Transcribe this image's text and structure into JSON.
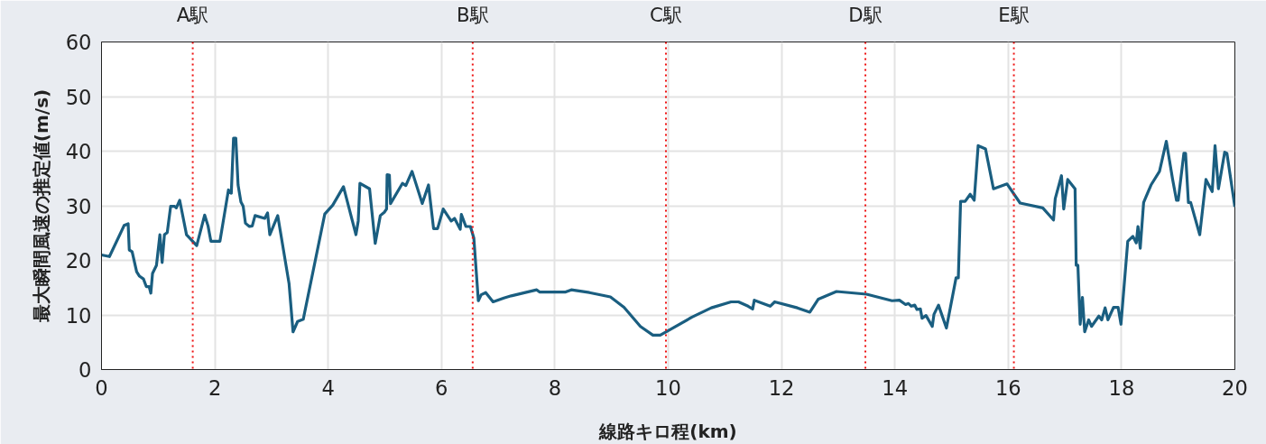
{
  "chart_data": {
    "type": "line",
    "xlabel": "線路キロ程(km)",
    "ylabel": "最大瞬間風速の推定値(m/s)",
    "xlim": [
      0,
      20
    ],
    "xticks": [
      0,
      2,
      4,
      6,
      8,
      10,
      12,
      14,
      16,
      18,
      20
    ],
    "ylim": [
      0,
      60
    ],
    "yticks": [
      0,
      10,
      20,
      30,
      40,
      50,
      60
    ],
    "grid": true,
    "marker": "none",
    "line_style": "solid",
    "ref_lines": [
      {
        "axis": "x",
        "value": 1.61,
        "label": "A駅",
        "color": "#ee1111",
        "line_style": "dotted"
      },
      {
        "axis": "x",
        "value": 6.55,
        "label": "B駅",
        "color": "#ee1111",
        "line_style": "dotted"
      },
      {
        "axis": "x",
        "value": 9.96,
        "label": "C駅",
        "color": "#ee1111",
        "line_style": "dotted"
      },
      {
        "axis": "x",
        "value": 13.48,
        "label": "D駅",
        "color": "#ee1111",
        "line_style": "dotted"
      },
      {
        "axis": "x",
        "value": 16.1,
        "label": "E駅",
        "color": "#ee1111",
        "line_style": "dotted"
      }
    ],
    "series": [
      {
        "color": "#1a5e80",
        "x": [
          0,
          0.14,
          0.4,
          0.47,
          0.49,
          0.54,
          0.62,
          0.67,
          0.74,
          0.79,
          0.84,
          0.87,
          0.9,
          0.97,
          1.03,
          1.07,
          1.11,
          1.16,
          1.22,
          1.29,
          1.32,
          1.38,
          1.5,
          1.68,
          1.82,
          1.88,
          1.93,
          2.09,
          2.24,
          2.29,
          2.33,
          2.37,
          2.41,
          2.46,
          2.5,
          2.54,
          2.61,
          2.66,
          2.71,
          2.88,
          2.93,
          2.97,
          3.11,
          3.31,
          3.38,
          3.46,
          3.56,
          3.94,
          4.08,
          4.27,
          4.49,
          4.53,
          4.56,
          4.73,
          4.83,
          4.92,
          4.99,
          5.03,
          5.04,
          5.08,
          5.1,
          5.31,
          5.37,
          5.48,
          5.66,
          5.77,
          5.86,
          5.93,
          6.03,
          6.17,
          6.23,
          6.33,
          6.35,
          6.43,
          6.51,
          6.57,
          6.65,
          6.7,
          6.78,
          6.91,
          7.1,
          7.23,
          7.68,
          7.73,
          7.97,
          8.19,
          8.29,
          8.61,
          8.98,
          9.22,
          9.51,
          9.73,
          9.86,
          10.1,
          10.42,
          10.76,
          11.11,
          11.24,
          11.41,
          11.49,
          11.52,
          11.8,
          11.88,
          12.28,
          12.5,
          12.65,
          12.97,
          13.5,
          13.95,
          14.08,
          14.19,
          14.24,
          14.29,
          14.35,
          14.39,
          14.45,
          14.48,
          14.55,
          14.66,
          14.69,
          14.77,
          14.91,
          15.08,
          15.12,
          15.16,
          15.24,
          15.33,
          15.4,
          15.47,
          15.6,
          15.74,
          15.98,
          16.21,
          16.61,
          16.8,
          16.83,
          16.94,
          16.98,
          17.05,
          17.18,
          17.2,
          17.23,
          17.27,
          17.31,
          17.35,
          17.42,
          17.47,
          17.6,
          17.65,
          17.71,
          17.76,
          17.86,
          17.94,
          17.99,
          18.11,
          18.2,
          18.26,
          18.29,
          18.33,
          18.39,
          18.52,
          18.67,
          18.79,
          18.9,
          18.97,
          19.0,
          19.1,
          19.13,
          19.18,
          19.22,
          19.38,
          19.49,
          19.6,
          19.65,
          19.71,
          19.82,
          19.86,
          20
        ],
        "values": [
          21,
          20.7,
          26.4,
          26.7,
          21.9,
          21.6,
          17.9,
          17.1,
          16.6,
          15.2,
          15.2,
          14,
          17.6,
          19.1,
          24.7,
          19.6,
          24.7,
          25.1,
          29.9,
          29.9,
          29.6,
          31,
          24.7,
          22.7,
          28.3,
          26.3,
          23.5,
          23.5,
          32.9,
          32.3,
          42.4,
          42.4,
          33.8,
          30.7,
          29.9,
          26.8,
          26.2,
          26.3,
          28.2,
          27.7,
          28.7,
          24.7,
          28.2,
          15.7,
          6.9,
          8.8,
          9.2,
          28.5,
          30.1,
          33.5,
          24.7,
          27.2,
          34.1,
          33.1,
          23.1,
          28.2,
          28.8,
          29.4,
          35.7,
          35.6,
          30.4,
          34.1,
          33.7,
          36.3,
          30.4,
          33.8,
          25.8,
          25.8,
          29.4,
          27.2,
          27.7,
          25.7,
          28.4,
          26.2,
          26.2,
          24.1,
          12.6,
          13.7,
          14.1,
          12.4,
          13.1,
          13.5,
          14.6,
          14.2,
          14.2,
          14.2,
          14.6,
          14.1,
          13.3,
          11.4,
          7.9,
          6.3,
          6.3,
          7.7,
          9.6,
          11.3,
          12.4,
          12.4,
          11.6,
          11.1,
          12.7,
          11.6,
          12.4,
          11.3,
          10.5,
          12.9,
          14.3,
          13.8,
          12.6,
          12.7,
          11.9,
          12.1,
          11.6,
          11.8,
          11,
          11.1,
          9.4,
          9.9,
          7.9,
          10.1,
          11.8,
          7.6,
          16.8,
          16.8,
          30.8,
          30.8,
          32.1,
          31,
          41,
          40.4,
          33.1,
          34,
          30.5,
          29.6,
          27.4,
          31.3,
          35.5,
          29.4,
          34.8,
          33.1,
          19.1,
          19.1,
          8.3,
          13.2,
          6.9,
          9.1,
          7.9,
          9.8,
          9.1,
          11.3,
          9.1,
          11.4,
          11.4,
          8.3,
          23.5,
          24.4,
          23.2,
          26.2,
          22.2,
          30.6,
          33.8,
          36.3,
          41.8,
          34.9,
          31,
          31,
          39.6,
          39.6,
          30.6,
          30.6,
          24.7,
          34.8,
          32.6,
          41,
          33.1,
          39.8,
          39.6,
          29.8
        ]
      }
    ]
  }
}
